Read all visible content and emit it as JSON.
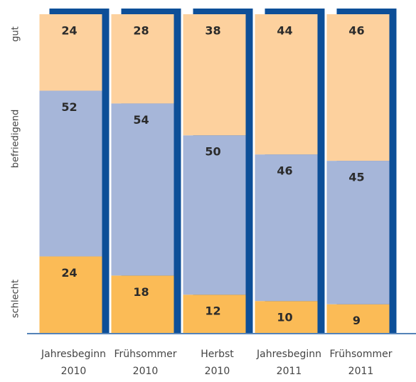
{
  "chart_data": {
    "type": "stacked_bar",
    "categories": [
      [
        "Jahresbeginn",
        "2010"
      ],
      [
        "Frühsommer",
        "2010"
      ],
      [
        "Herbst",
        "2010"
      ],
      [
        "Jahresbeginn",
        "2011"
      ],
      [
        "Frühsommer",
        "2011"
      ]
    ],
    "series": [
      {
        "name": "schlecht",
        "color": "#fbbb56",
        "values": [
          24,
          18,
          12,
          10,
          9
        ]
      },
      {
        "name": "befriedigend",
        "color": "#a6b6d9",
        "values": [
          52,
          54,
          50,
          46,
          45
        ]
      },
      {
        "name": "gut",
        "color": "#fdd19e",
        "values": [
          24,
          28,
          38,
          44,
          46
        ]
      }
    ],
    "ylim": [
      0,
      100
    ],
    "shadow_color": "#0d4f98"
  }
}
